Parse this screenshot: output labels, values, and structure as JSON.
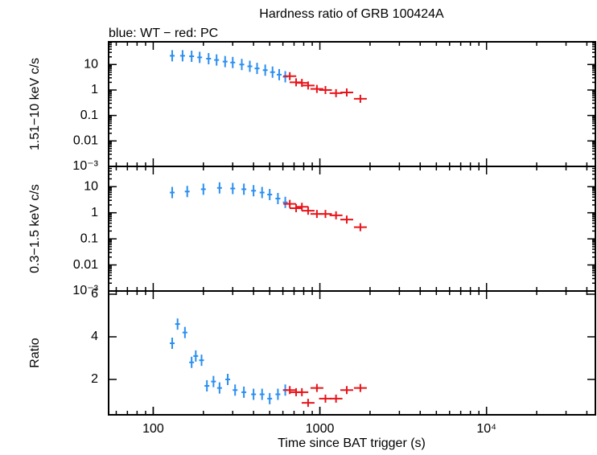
{
  "chart_data": [
    {
      "type": "scatter",
      "title": "Hardness ratio of GRB 100424A",
      "subtitle": "blue: WT − red: PC",
      "ylabel": "1.51−10 keV c/s",
      "log_x": true,
      "log_y": true,
      "xlim": [
        54,
        45000
      ],
      "ylim": [
        0.001,
        78
      ],
      "yticks": [
        10,
        1,
        0.1,
        0.01,
        {
          "value": 0.001,
          "label": "10⁻³"
        }
      ],
      "series": [
        {
          "color": "#2b8ff0",
          "x": [
            130,
            150,
            170,
            190,
            215,
            240,
            270,
            300,
            340,
            380,
            420,
            470,
            520,
            570,
            620
          ],
          "values": [
            22,
            22,
            21,
            19,
            17,
            15,
            13,
            12,
            10,
            8.5,
            7,
            6,
            5,
            4,
            3.3
          ]
        },
        {
          "color": "#e8141a",
          "x": [
            660,
            720,
            780,
            850,
            960,
            1080,
            1250,
            1450,
            1750
          ],
          "values": [
            3.5,
            2,
            1.9,
            1.5,
            1.1,
            1.0,
            0.75,
            0.8,
            0.45
          ]
        }
      ]
    },
    {
      "type": "scatter",
      "ylabel": "0.3−1.5 keV c/s",
      "log_x": true,
      "log_y": true,
      "xlim": [
        54,
        45000
      ],
      "ylim": [
        0.001,
        60
      ],
      "yticks": [
        10,
        1,
        0.1,
        0.01,
        {
          "value": 0.001,
          "label": "10⁻³"
        }
      ],
      "series": [
        {
          "color": "#2b8ff0",
          "x": [
            130,
            160,
            200,
            250,
            300,
            350,
            400,
            450,
            500,
            560,
            620
          ],
          "values": [
            6,
            6.5,
            8,
            9,
            8.5,
            8,
            7,
            6,
            5,
            3.5,
            2.5
          ]
        },
        {
          "color": "#e8141a",
          "x": [
            660,
            720,
            780,
            850,
            960,
            1080,
            1250,
            1450,
            1750
          ],
          "values": [
            2.2,
            1.5,
            1.7,
            1.2,
            0.9,
            0.9,
            0.8,
            0.55,
            0.28
          ]
        }
      ]
    },
    {
      "type": "scatter",
      "ylabel": "Ratio",
      "xlabel": "Time since BAT trigger (s)",
      "log_x": true,
      "log_y": false,
      "xlim": [
        54,
        45000
      ],
      "ylim": [
        0.34,
        6.15
      ],
      "xticks": [
        100,
        1000,
        {
          "value": 10000,
          "label": "10⁴"
        }
      ],
      "yticks": [
        2,
        4,
        6
      ],
      "series": [
        {
          "color": "#2b8ff0",
          "x": [
            130,
            140,
            155,
            170,
            180,
            195,
            210,
            230,
            250,
            280,
            310,
            350,
            400,
            450,
            500,
            560,
            620
          ],
          "values": [
            3.7,
            4.6,
            4.2,
            2.8,
            3.1,
            2.9,
            1.7,
            1.9,
            1.6,
            2.0,
            1.5,
            1.4,
            1.3,
            1.3,
            1.1,
            1.3,
            1.5
          ]
        },
        {
          "color": "#e8141a",
          "x": [
            660,
            720,
            780,
            850,
            960,
            1080,
            1250,
            1450,
            1750
          ],
          "values": [
            1.5,
            1.4,
            1.4,
            0.9,
            1.6,
            1.1,
            1.1,
            1.5,
            1.6
          ]
        }
      ]
    }
  ]
}
